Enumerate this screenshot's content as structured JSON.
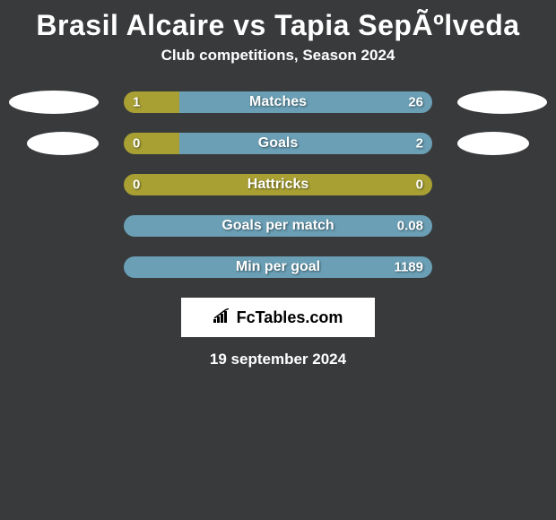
{
  "title": "Brasil Alcaire vs Tapia SepÃºlveda",
  "subtitle": "Club competitions, Season 2024",
  "colors": {
    "background": "#383a3c",
    "bar_left": "#a8a033",
    "bar_right": "#6a9fb5",
    "ellipse": "#ffffff",
    "text": "#ffffff"
  },
  "stats": [
    {
      "label": "Matches",
      "left_value": "1",
      "right_value": "26",
      "left_pct": 18,
      "right_pct": 82,
      "show_ellipse": true
    },
    {
      "label": "Goals",
      "left_value": "0",
      "right_value": "2",
      "left_pct": 18,
      "right_pct": 82,
      "show_ellipse": true
    },
    {
      "label": "Hattricks",
      "left_value": "0",
      "right_value": "0",
      "left_pct": 100,
      "right_pct": 0,
      "show_ellipse": false
    },
    {
      "label": "Goals per match",
      "left_value": "",
      "right_value": "0.08",
      "left_pct": 0,
      "right_pct": 100,
      "show_ellipse": false
    },
    {
      "label": "Min per goal",
      "left_value": "",
      "right_value": "1189",
      "left_pct": 0,
      "right_pct": 100,
      "show_ellipse": false
    }
  ],
  "logo": {
    "text": "FcTables.com"
  },
  "date": "19 september 2024"
}
